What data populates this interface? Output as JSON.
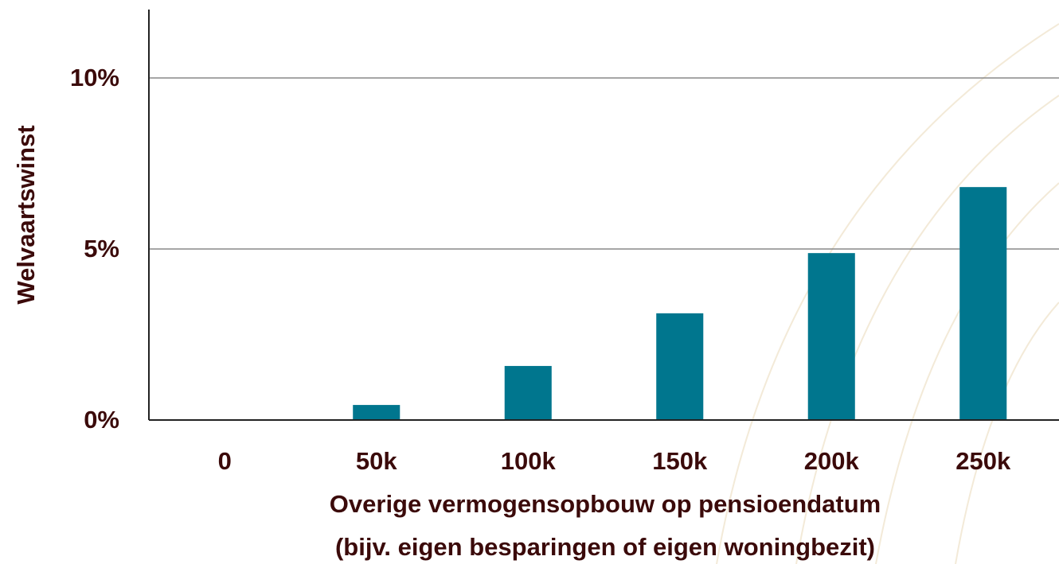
{
  "chart_data": {
    "type": "bar",
    "categories": [
      "0",
      "50k",
      "100k",
      "150k",
      "200k",
      "250k"
    ],
    "values": [
      0,
      0.44,
      1.58,
      3.12,
      4.88,
      6.81
    ],
    "color": "#00768e",
    "ylim": [
      0,
      12
    ],
    "yticks": [
      {
        "value": 0,
        "label": "0%"
      },
      {
        "value": 5,
        "label": "5%"
      },
      {
        "value": 10,
        "label": "10%"
      }
    ],
    "grid": true,
    "ylabel": "Welvaartswinst",
    "xlabel": [
      "Overige vermogensopbouw op pensioendatum",
      "(bijv. eigen besparingen of eigen woningbezit)"
    ]
  }
}
